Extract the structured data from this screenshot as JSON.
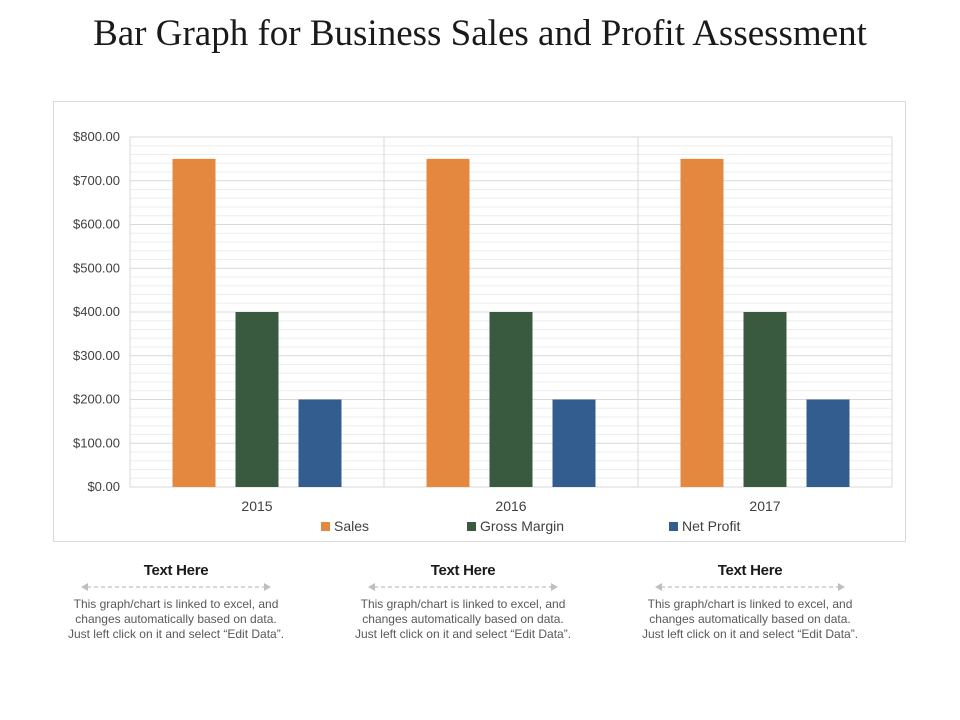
{
  "page": {
    "title": "Bar Graph for Business Sales and Profit Assessment"
  },
  "chart_data": {
    "type": "bar",
    "title": "",
    "xlabel": "",
    "ylabel": "",
    "categories": [
      "2015",
      "2016",
      "2017"
    ],
    "series": [
      {
        "name": "Sales",
        "values": [
          750,
          750,
          750
        ],
        "color": "#E4883F"
      },
      {
        "name": "Gross Margin",
        "values": [
          400,
          400,
          400
        ],
        "color": "#3A5A40"
      },
      {
        "name": "Net Profit",
        "values": [
          200,
          200,
          200
        ],
        "color": "#335C8F"
      }
    ],
    "ylim": [
      0,
      800
    ],
    "yticks": [
      0,
      100,
      200,
      300,
      400,
      500,
      600,
      700,
      800
    ],
    "ytick_labels": [
      "$0.00",
      "$100.00",
      "$200.00",
      "$300.00",
      "$400.00",
      "$500.00",
      "$600.00",
      "$700.00",
      "$800.00"
    ],
    "grid": true,
    "legend_position": "bottom"
  },
  "notes": [
    {
      "heading": "Text Here",
      "body": "This graph/chart is linked to excel, and changes automatically based on data. Just left click on it and select “Edit Data”."
    },
    {
      "heading": "Text Here",
      "body": "This graph/chart is linked to excel, and changes automatically based on data. Just left click on it and select “Edit Data”."
    },
    {
      "heading": "Text Here",
      "body": "This graph/chart is linked to excel, and changes automatically based on data. Just left click on it and select “Edit Data”."
    }
  ]
}
